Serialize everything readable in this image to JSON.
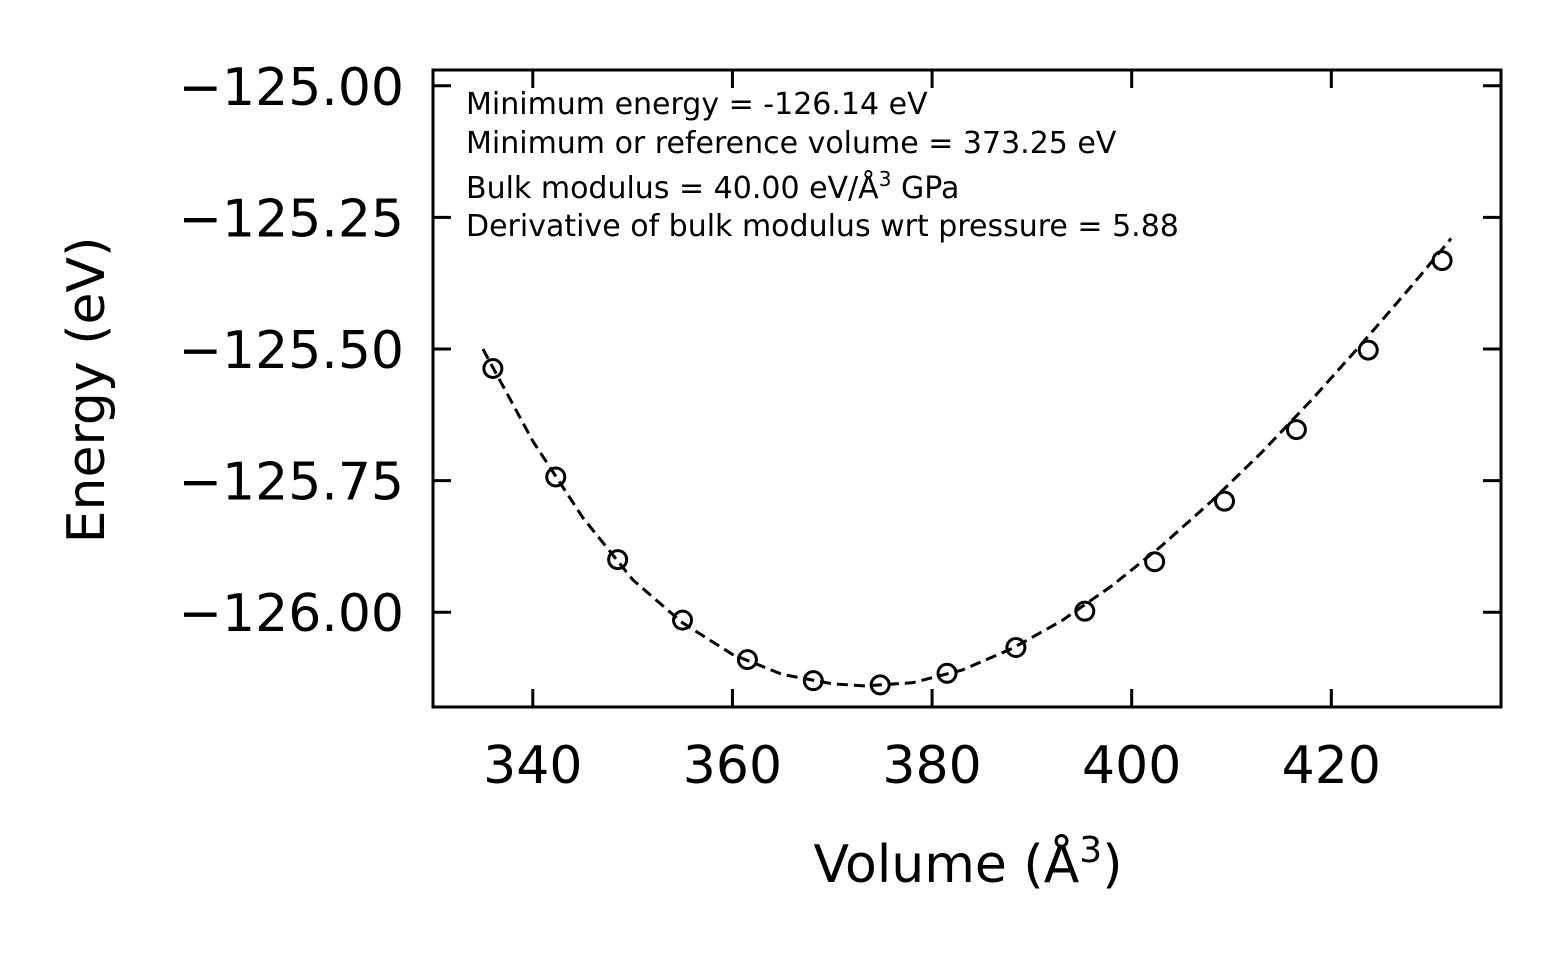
{
  "chart_data": {
    "type": "scatter",
    "title": "",
    "xlabel": "Volume (Å",
    "xlabel_sup": "3",
    "xlabel_close": ")",
    "ylabel": "Energy (eV)",
    "xlim": [
      330,
      437
    ],
    "ylim": [
      -126.18,
      -124.97
    ],
    "xticks": [
      340,
      360,
      380,
      400,
      420
    ],
    "xtick_labels": [
      "340",
      "360",
      "380",
      "400",
      "420"
    ],
    "yticks": [
      -125.0,
      -125.25,
      -125.5,
      -125.75,
      -126.0
    ],
    "ytick_labels": [
      "−125.00",
      "−125.25",
      "−125.50",
      "−125.75",
      "−126.00"
    ],
    "grid": false,
    "annotations": {
      "line1": "Minimum energy = -126.14 eV",
      "line2": "Minimum or reference volume = 373.25 eV",
      "line3_pre": "Bulk modulus = 40.00 eV/Å",
      "line3_sup": "3",
      "line3_post": " GPa",
      "line4": "Derivative of bulk modulus wrt pressure = 5.88"
    },
    "series": [
      {
        "name": "data",
        "style": "open-circle markers",
        "color": "#000000",
        "x": [
          336.0,
          342.3,
          348.5,
          355.0,
          361.5,
          368.1,
          374.8,
          381.5,
          388.4,
          395.3,
          402.3,
          409.3,
          416.5,
          423.7,
          431.1
        ],
        "y": [
          -125.537,
          -125.743,
          -125.9,
          -126.015,
          -126.09,
          -126.13,
          -126.138,
          -126.116,
          -126.067,
          -125.998,
          -125.904,
          -125.789,
          -125.653,
          -125.502,
          -125.332
        ]
      },
      {
        "name": "fit",
        "style": "dashed line",
        "color": "#000000",
        "x": [
          335.0,
          340.0,
          345.0,
          350.0,
          355.0,
          360.0,
          365.0,
          370.0,
          373.25,
          378.0,
          383.0,
          388.0,
          393.0,
          398.0,
          403.0,
          408.0,
          413.0,
          418.0,
          423.0,
          428.0,
          432.0
        ],
        "y": [
          -125.5,
          -125.675,
          -125.82,
          -125.938,
          -126.02,
          -126.08,
          -126.118,
          -126.136,
          -126.14,
          -126.134,
          -126.11,
          -126.069,
          -126.016,
          -125.95,
          -125.874,
          -125.789,
          -125.697,
          -125.597,
          -125.491,
          -125.381,
          -125.29
        ]
      }
    ]
  }
}
